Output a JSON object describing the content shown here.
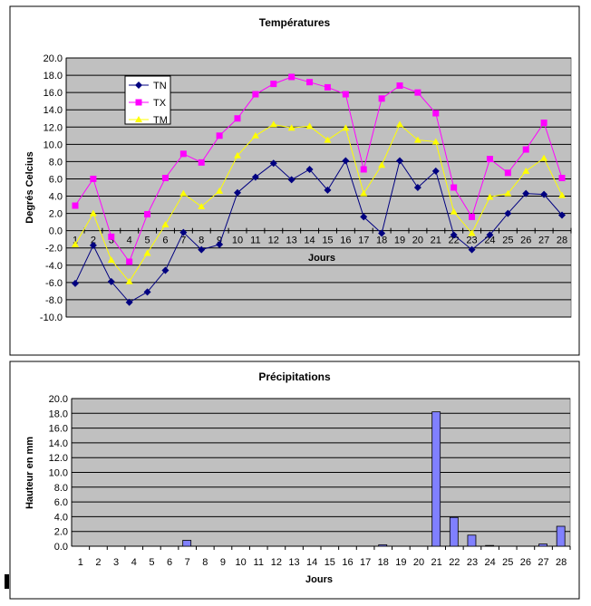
{
  "chart_data": [
    {
      "type": "line",
      "title": "Températures",
      "xlabel": "Jours",
      "ylabel": "Degrés Celcius",
      "ylim": [
        -10,
        20
      ],
      "ytick_step": 2,
      "x": [
        1,
        2,
        3,
        4,
        5,
        6,
        7,
        8,
        9,
        10,
        11,
        12,
        13,
        14,
        15,
        16,
        17,
        18,
        19,
        20,
        21,
        22,
        23,
        24,
        25,
        26,
        27,
        28
      ],
      "legend": "top-left",
      "series": [
        {
          "name": "TN",
          "color": "#000080",
          "marker": "diamond",
          "values": [
            -6.1,
            -1.7,
            -5.9,
            -8.3,
            -7.1,
            -4.6,
            -0.2,
            -2.2,
            -1.6,
            4.4,
            6.2,
            7.8,
            5.9,
            7.1,
            4.7,
            8.1,
            1.6,
            -0.3,
            8.1,
            5.0,
            6.9,
            -0.5,
            -2.2,
            -0.5,
            2.0,
            4.3,
            4.2,
            1.8
          ]
        },
        {
          "name": "TX",
          "color": "#ff00ff",
          "marker": "square",
          "values": [
            2.9,
            6.0,
            -0.7,
            -3.6,
            1.9,
            6.1,
            8.9,
            7.9,
            11.0,
            13.0,
            15.8,
            17.0,
            17.8,
            17.2,
            16.6,
            15.8,
            7.1,
            15.3,
            16.8,
            16.0,
            13.6,
            5.0,
            1.6,
            8.3,
            6.7,
            9.4,
            12.5,
            6.1
          ]
        },
        {
          "name": "TM",
          "color": "#ffff00",
          "marker": "triangle",
          "values": [
            -1.6,
            2.0,
            -3.4,
            -5.9,
            -2.6,
            0.7,
            4.3,
            2.8,
            4.6,
            8.7,
            11.0,
            12.3,
            11.9,
            12.1,
            10.5,
            11.9,
            4.3,
            7.6,
            12.3,
            10.5,
            10.3,
            2.2,
            -0.3,
            3.9,
            4.3,
            6.9,
            8.4,
            4.1
          ]
        }
      ]
    },
    {
      "type": "bar",
      "title": "Précipitations",
      "xlabel": "Jours",
      "ylabel": "Hauteur en mm",
      "ylim": [
        0,
        20
      ],
      "ytick_step": 2,
      "color": "#8080ff",
      "categories": [
        1,
        2,
        3,
        4,
        5,
        6,
        7,
        8,
        9,
        10,
        11,
        12,
        13,
        14,
        15,
        16,
        17,
        18,
        19,
        20,
        21,
        22,
        23,
        24,
        25,
        26,
        27,
        28
      ],
      "values": [
        0,
        0,
        0,
        0,
        0,
        0,
        0.8,
        0,
        0,
        0,
        0,
        0,
        0,
        0,
        0,
        0,
        0,
        0.2,
        0,
        0,
        18.2,
        3.9,
        1.5,
        0.1,
        0,
        0,
        0.3,
        2.7
      ]
    }
  ]
}
